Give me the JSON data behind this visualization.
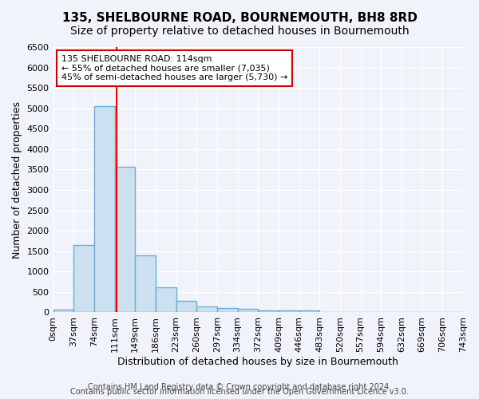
{
  "title": "135, SHELBOURNE ROAD, BOURNEMOUTH, BH8 8RD",
  "subtitle": "Size of property relative to detached houses in Bournemouth",
  "xlabel": "Distribution of detached houses by size in Bournemouth",
  "ylabel": "Number of detached properties",
  "bin_labels": [
    "0sqm",
    "37sqm",
    "74sqm",
    "111sqm",
    "149sqm",
    "186sqm",
    "223sqm",
    "260sqm",
    "297sqm",
    "334sqm",
    "372sqm",
    "409sqm",
    "446sqm",
    "483sqm",
    "520sqm",
    "557sqm",
    "594sqm",
    "632sqm",
    "669sqm",
    "706sqm",
    "743sqm"
  ],
  "bar_heights": [
    75,
    1650,
    5050,
    3575,
    1400,
    610,
    285,
    155,
    110,
    80,
    55,
    40,
    50,
    0,
    0,
    0,
    0,
    0,
    0,
    0
  ],
  "bar_color": "#cce0f0",
  "bar_edgecolor": "#6aaed6",
  "bar_linewidth": 1.0,
  "redline_bin": 3.08,
  "bin_width": 1,
  "ylim": [
    0,
    6500
  ],
  "yticks": [
    0,
    500,
    1000,
    1500,
    2000,
    2500,
    3000,
    3500,
    4000,
    4500,
    5000,
    5500,
    6000,
    6500
  ],
  "annotation_text": "135 SHELBOURNE ROAD: 114sqm\n← 55% of detached houses are smaller (7,035)\n45% of semi-detached houses are larger (5,730) →",
  "annotation_box_edgecolor": "#cc0000",
  "annotation_box_facecolor": "#ffffff",
  "footer_line1": "Contains HM Land Registry data © Crown copyright and database right 2024.",
  "footer_line2": "Contains public sector information licensed under the Open Government Licence v3.0.",
  "background_color": "#f0f4fa",
  "grid_color": "#ffffff",
  "title_fontsize": 11,
  "subtitle_fontsize": 10,
  "axis_label_fontsize": 9,
  "tick_fontsize": 8,
  "footer_fontsize": 7
}
